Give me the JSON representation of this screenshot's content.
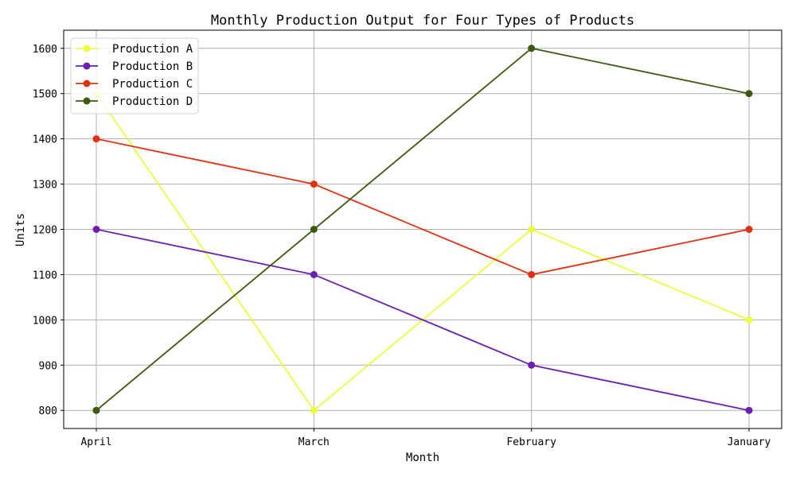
{
  "chart_data": {
    "type": "line",
    "title": "Monthly Production Output for Four Types of Products",
    "xlabel": "Month",
    "ylabel": "Units",
    "categories": [
      "April",
      "March",
      "February",
      "January"
    ],
    "ylim": [
      760,
      1640
    ],
    "yticks": [
      800,
      900,
      1000,
      1100,
      1200,
      1300,
      1400,
      1500,
      1600
    ],
    "grid": true,
    "legend_position": "top-left",
    "series": [
      {
        "name": "Production A",
        "color": "#eaff40",
        "values": [
          1500,
          800,
          1200,
          1000
        ]
      },
      {
        "name": "Production B",
        "color": "#6a1fb0",
        "values": [
          1200,
          1100,
          900,
          800
        ]
      },
      {
        "name": "Production C",
        "color": "#e0300f",
        "values": [
          1400,
          1300,
          1100,
          1200
        ]
      },
      {
        "name": "Production D",
        "color": "#3d5a10",
        "values": [
          800,
          1200,
          1600,
          1500
        ]
      }
    ]
  }
}
